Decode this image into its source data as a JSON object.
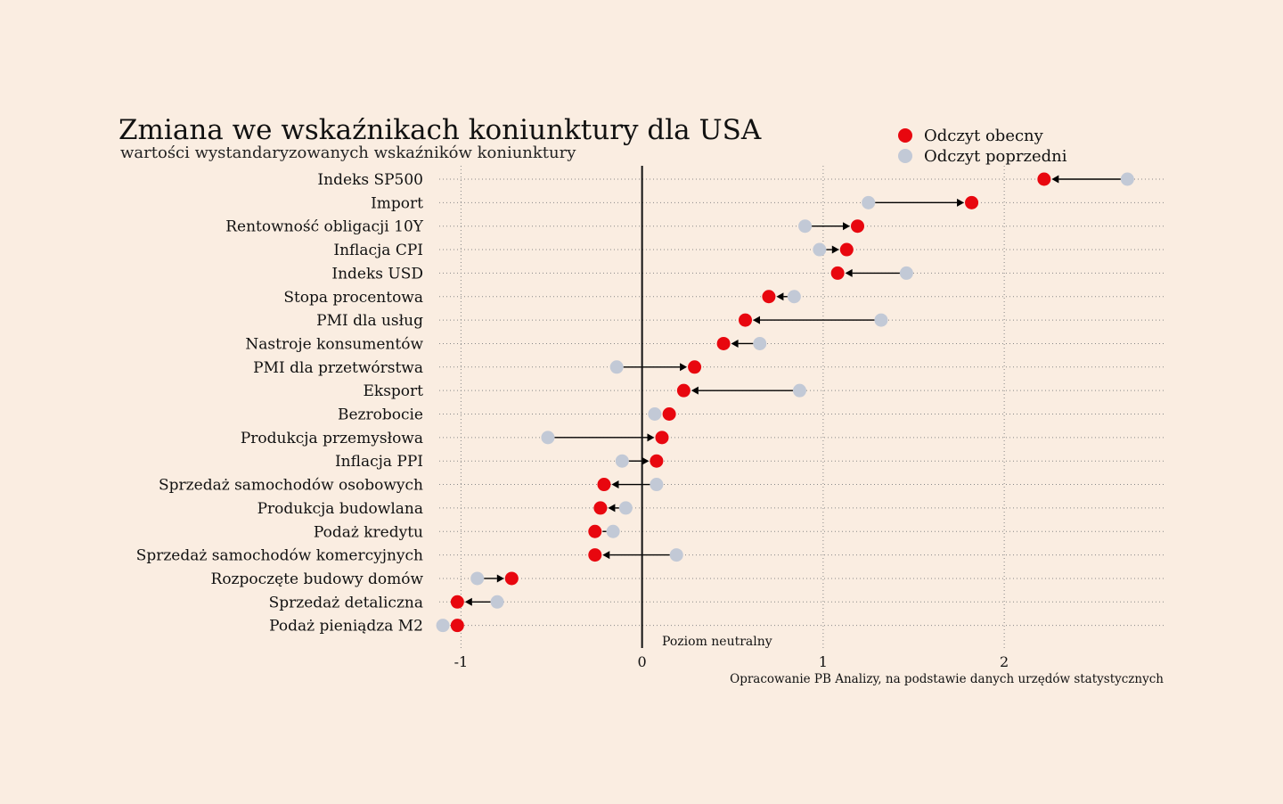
{
  "chart_data": {
    "type": "dumbbell",
    "title": "Zmiana we wskaźnikach koniunktury dla USA",
    "subtitle": "wartości wystandaryzowanych wskaźników koniunktury",
    "source": "Opracowanie PB Analizy, na podstawie danych urzędów statystycznych",
    "neutral_label": "Poziom neutralny",
    "xlim": [
      -1.12,
      2.88
    ],
    "xticks": [
      -1,
      0,
      1,
      2
    ],
    "xtick_labels": [
      "-1",
      "0",
      "1",
      "2"
    ],
    "grid": "dotted",
    "legend": {
      "placement": "top-right",
      "entries": [
        {
          "key": "current",
          "label": "Odczyt obecny",
          "color": "#e8070f"
        },
        {
          "key": "previous",
          "label": "Odczyt poprzedni",
          "color": "#c2c9d6"
        }
      ]
    },
    "categories": [
      "Indeks SP500",
      "Import",
      "Rentowność obligacji 10Y",
      "Inflacja CPI",
      "Indeks USD",
      "Stopa procentowa",
      "PMI dla usług",
      "Nastroje konsumentów",
      "PMI dla przetwórstwa",
      "Eksport",
      "Bezrobocie",
      "Produkcja przemysłowa",
      "Inflacja PPI",
      "Sprzedaż samochodów osobowych",
      "Produkcja budowlana",
      "Podaż kredytu",
      "Sprzedaż samochodów komercyjnych",
      "Rozpoczęte budowy domów",
      "Sprzedaż detaliczna",
      "Podaż pieniądza M2"
    ],
    "series": [
      {
        "key": "current",
        "name": "Odczyt obecny",
        "values": [
          2.22,
          1.82,
          1.19,
          1.13,
          1.08,
          0.7,
          0.57,
          0.45,
          0.29,
          0.23,
          0.15,
          0.11,
          0.08,
          -0.21,
          -0.23,
          -0.26,
          -0.26,
          -0.72,
          -1.02,
          -1.02
        ]
      },
      {
        "key": "previous",
        "name": "Odczyt poprzedni",
        "values": [
          2.68,
          1.25,
          0.9,
          0.98,
          1.46,
          0.84,
          1.32,
          0.65,
          -0.14,
          0.87,
          0.07,
          -0.52,
          -0.11,
          0.08,
          -0.09,
          -0.16,
          0.19,
          -0.91,
          -0.8,
          -1.1
        ]
      }
    ]
  }
}
